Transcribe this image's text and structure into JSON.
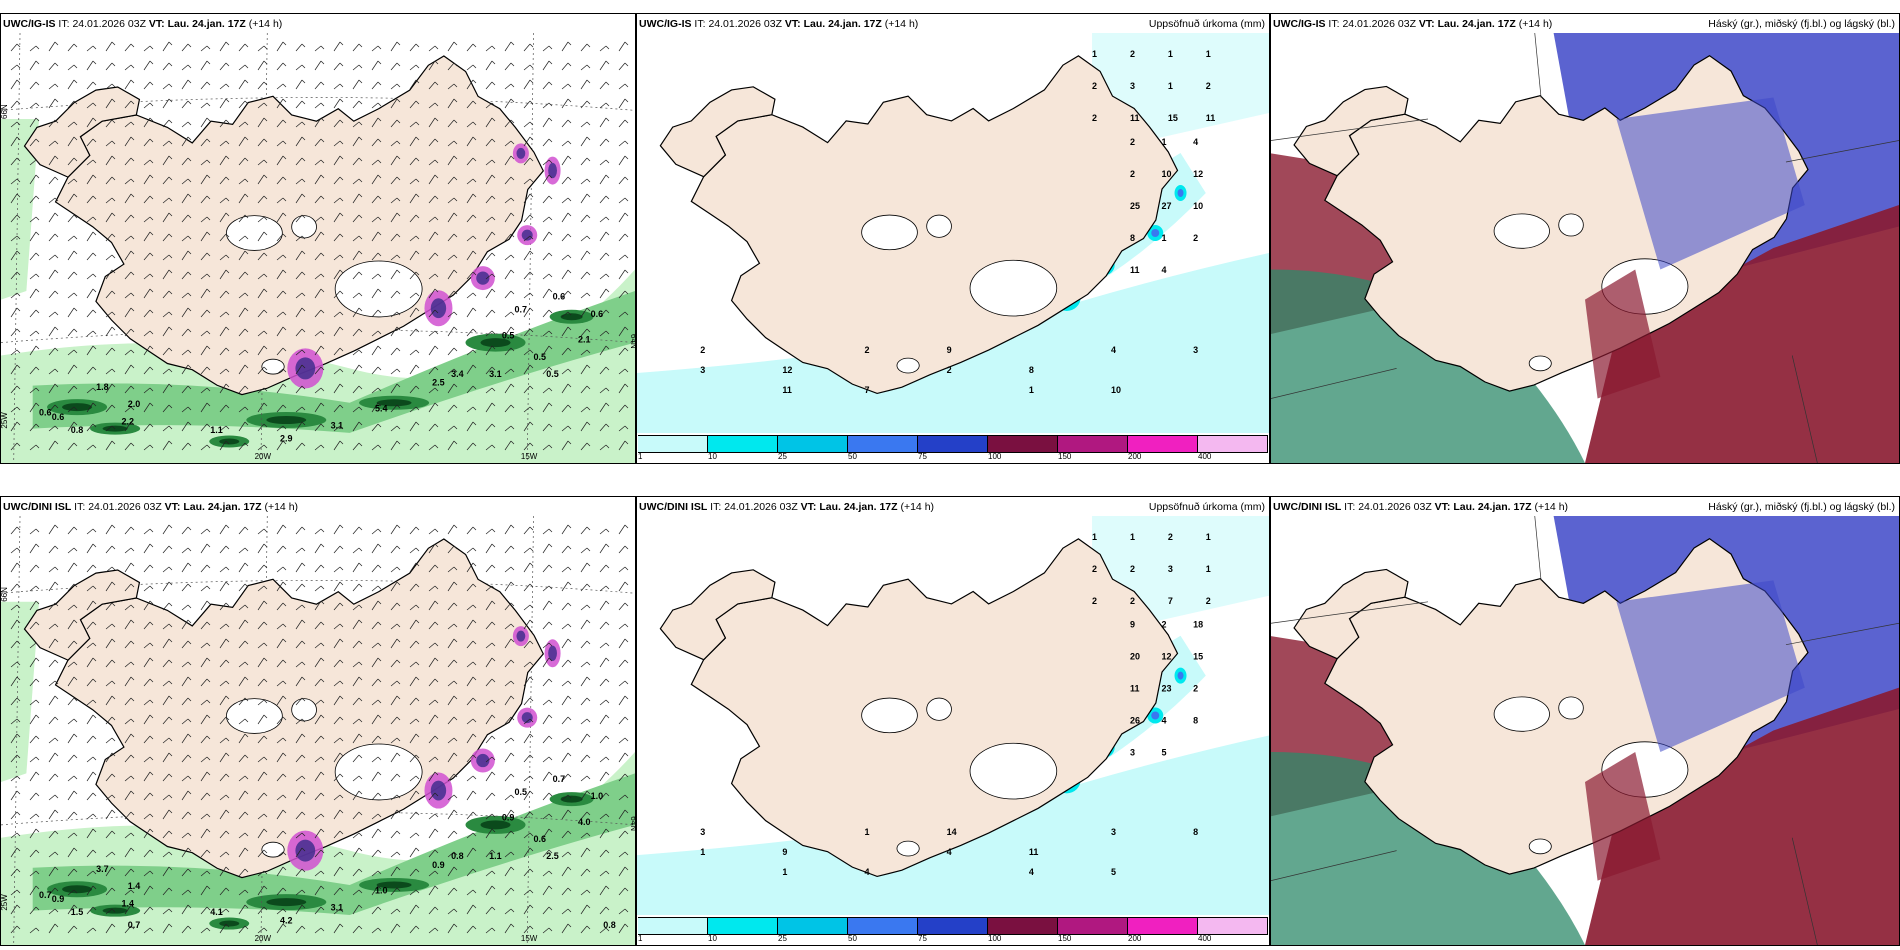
{
  "panels": [
    {
      "model": "UWC/IG-IS",
      "it_label": "IT:",
      "it_value": "24.01.2026 03Z",
      "vt_label": "VT:",
      "vt_value": "Lau. 24.jan. 17Z",
      "lead": "(+14 h)",
      "right_title": "",
      "kind": "wind",
      "labels": [
        "0.6",
        "0.6",
        "0.8",
        "1.8",
        "2.2",
        "2.0",
        "1.1",
        "2.9",
        "3.1",
        "5.4",
        "2.5",
        "3.4",
        "3.1",
        "0.5",
        "0.7",
        "0.6",
        "0.6",
        "2.1",
        "0.5",
        "0.5"
      ],
      "axis": [
        "66N",
        "20W",
        "15W",
        "64N",
        "25W"
      ]
    },
    {
      "model": "UWC/IG-IS",
      "it_label": "IT:",
      "it_value": "24.01.2026 03Z",
      "vt_label": "VT:",
      "vt_value": "Lau. 24.jan. 17Z",
      "lead": "(+14 h)",
      "right_title": "Uppsöfnuð úrkoma (mm)",
      "kind": "precip",
      "labels": [
        "1",
        "2",
        "1",
        "1",
        "2",
        "3",
        "1",
        "2",
        "2",
        "11",
        "15",
        "11",
        "2",
        "1",
        "4",
        "2",
        "10",
        "12",
        "25",
        "27",
        "10",
        "8",
        "1",
        "2",
        "11",
        "4",
        "2",
        "12",
        "7",
        "9",
        "8",
        "10",
        "3",
        "3",
        "11",
        "2",
        "2",
        "1",
        "4"
      ],
      "legend": [
        "1",
        "10",
        "25",
        "50",
        "75",
        "100",
        "150",
        "200",
        "400"
      ]
    },
    {
      "model": "UWC/IG-IS",
      "it_label": "IT:",
      "it_value": "24.01.2026 03Z",
      "vt_label": "VT:",
      "vt_value": "Lau. 24.jan. 17Z",
      "lead": "(+14 h)",
      "right_title": "Háský (gr.), miðský (fj.bl.) og lágský (bl.)",
      "kind": "cloud"
    },
    {
      "model": "UWC/DINI ISL",
      "it_label": "IT:",
      "it_value": "24.01.2026 03Z",
      "vt_label": "VT:",
      "vt_value": "Lau. 24.jan. 17Z",
      "lead": "(+14 h)",
      "right_title": "",
      "kind": "wind",
      "labels": [
        "0.7",
        "0.9",
        "1.5",
        "3.7",
        "1.4",
        "1.4",
        "4.1",
        "4.2",
        "3.1",
        "1.0",
        "0.9",
        "0.8",
        "1.1",
        "0.9",
        "0.5",
        "0.7",
        "1.0",
        "4.0",
        "2.5",
        "0.6",
        "0.7",
        "0.8"
      ],
      "axis": [
        "66N",
        "20W",
        "15W",
        "64N",
        "25W"
      ]
    },
    {
      "model": "UWC/DINI ISL",
      "it_label": "IT:",
      "it_value": "24.01.2026 03Z",
      "vt_label": "VT:",
      "vt_value": "Lau. 24.jan. 17Z",
      "lead": "(+14 h)",
      "right_title": "Uppsöfnuð úrkoma (mm)",
      "kind": "precip",
      "labels": [
        "1",
        "1",
        "2",
        "1",
        "2",
        "2",
        "3",
        "1",
        "2",
        "2",
        "7",
        "2",
        "9",
        "2",
        "18",
        "20",
        "12",
        "15",
        "11",
        "23",
        "2",
        "26",
        "4",
        "8",
        "3",
        "5",
        "3",
        "9",
        "4",
        "14",
        "11",
        "5",
        "8",
        "1",
        "1",
        "1",
        "4",
        "4",
        "3"
      ],
      "legend": [
        "1",
        "10",
        "25",
        "50",
        "75",
        "100",
        "150",
        "200",
        "400"
      ]
    },
    {
      "model": "UWC/DINI ISL",
      "it_label": "IT:",
      "it_value": "24.01.2026 03Z",
      "vt_label": "VT:",
      "vt_value": "Lau. 24.jan. 17Z",
      "lead": "(+14 h)",
      "right_title": "Háský (gr.), miðský (fj.bl.) og lágský (bl.)",
      "kind": "cloud"
    }
  ],
  "colors": {
    "land": "#f6e6d9",
    "precip_scale": [
      "#c8fafa",
      "#00e8ee",
      "#00c4e6",
      "#3a78f0",
      "#2440c8",
      "#7a1040",
      "#b01880",
      "#f020c0",
      "#f4b8f0"
    ],
    "wind_shade": [
      "#c9f2c9",
      "#7fcf8a",
      "#2a8a40",
      "#0b4a1c"
    ],
    "snow": "#d050d0",
    "cloud_high": "#2e8a6a",
    "cloud_mid": "#8a1a30",
    "cloud_low": "#3e48c8"
  }
}
